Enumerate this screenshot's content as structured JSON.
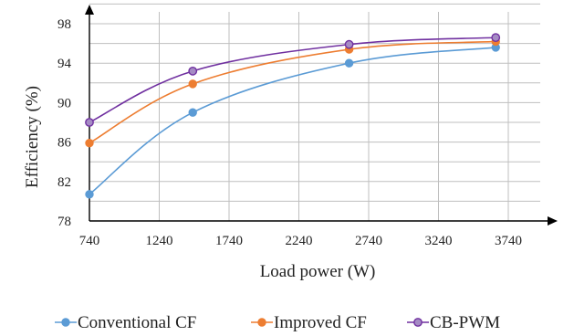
{
  "chart_data": {
    "type": "line",
    "xlabel": "Load power (W)",
    "ylabel": "Efficiency (%)",
    "xlim": [
      740,
      3990
    ],
    "ylim": [
      78,
      100
    ],
    "x_ticks": [
      740,
      1240,
      1740,
      2240,
      2740,
      3240,
      3740
    ],
    "y_ticks": [
      78,
      82,
      86,
      90,
      94,
      98
    ],
    "grid": true,
    "smooth": true,
    "legend_position": "bottom",
    "series": [
      {
        "name": "Conventional CF",
        "color": "#5b9bd5",
        "x": [
          740,
          1480,
          2600,
          3650
        ],
        "y": [
          80.7,
          89.0,
          94.0,
          95.6
        ]
      },
      {
        "name": "Improved CF",
        "color": "#ed7d31",
        "x": [
          740,
          1480,
          2600,
          3650
        ],
        "y": [
          85.9,
          91.9,
          95.4,
          96.2
        ]
      },
      {
        "name": "CB-PWM",
        "color": "#7030a0",
        "fill": "#a58bc4",
        "x": [
          740,
          1480,
          2600,
          3650
        ],
        "y": [
          88.0,
          93.2,
          95.9,
          96.6
        ]
      }
    ]
  }
}
